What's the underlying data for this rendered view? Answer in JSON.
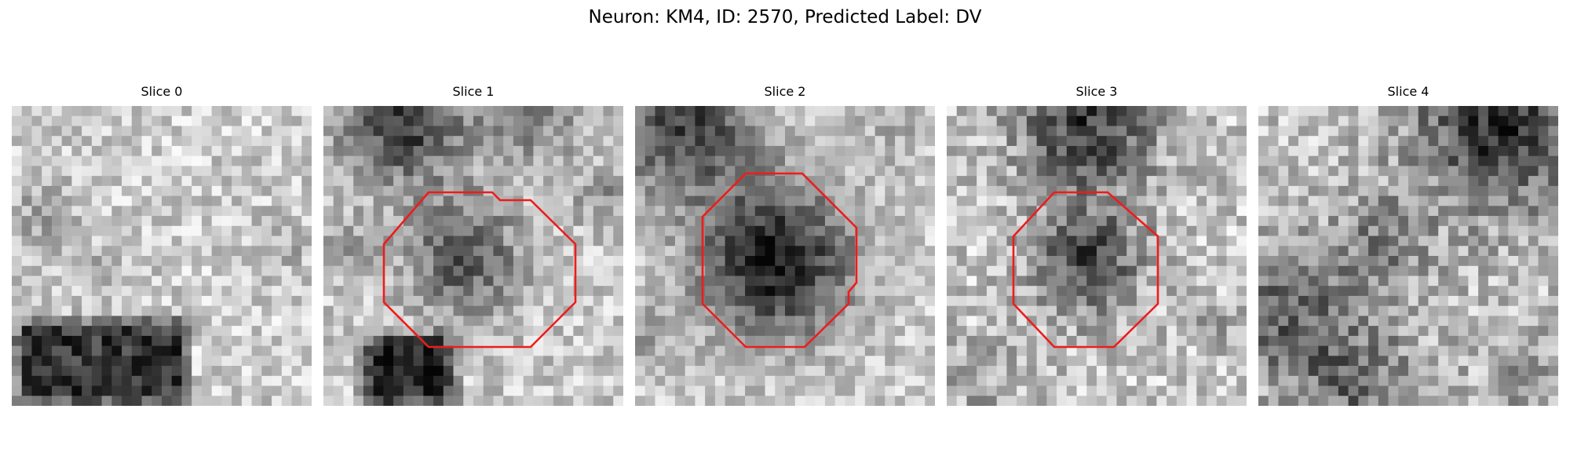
{
  "figure": {
    "title": "Neuron: KM4, ID: 2570, Predicted Label: DV",
    "contour_color": "#ee1c1c",
    "colormap": "grayscale",
    "panels": [
      {
        "title": "Slice 0",
        "has_contour": false
      },
      {
        "title": "Slice 1",
        "has_contour": true
      },
      {
        "title": "Slice 2",
        "has_contour": true
      },
      {
        "title": "Slice 3",
        "has_contour": true
      },
      {
        "title": "Slice 4",
        "has_contour": false
      }
    ]
  }
}
